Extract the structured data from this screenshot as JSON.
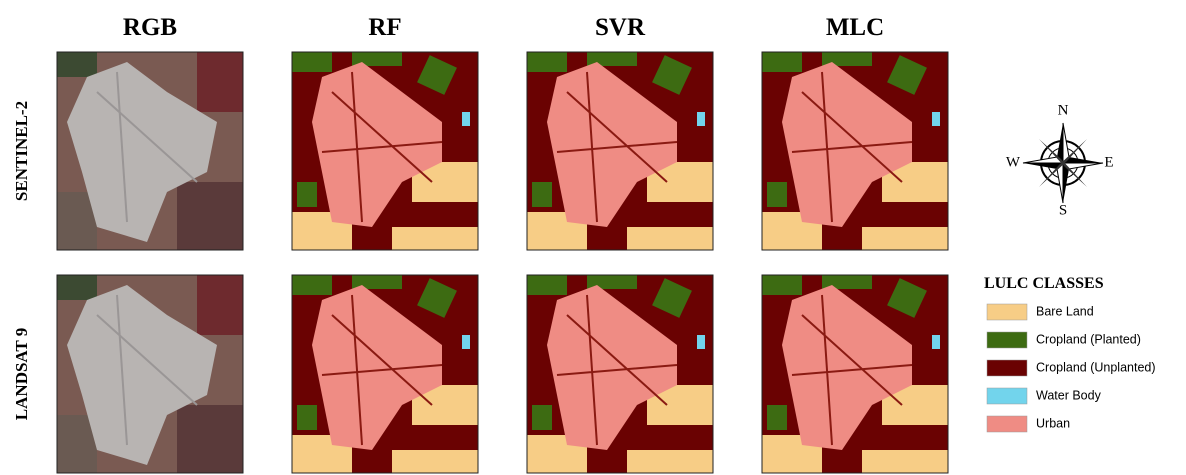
{
  "columns": [
    "RGB",
    "RF",
    "SVR",
    "MLC"
  ],
  "rows": [
    "SENTINEL-2",
    "LANDSAT 9"
  ],
  "compass": {
    "n": "N",
    "s": "S",
    "e": "E",
    "w": "W"
  },
  "legend": {
    "title": "LULC CLASSES",
    "items": [
      {
        "label": "Bare Land",
        "color": "#f7cd86"
      },
      {
        "label": "Cropland (Planted)",
        "color": "#3d6b12"
      },
      {
        "label": "Cropland (Unplanted)",
        "color": "#6a0202"
      },
      {
        "label": "Water Body",
        "color": "#72d4ec"
      },
      {
        "label": "Urban",
        "color": "#ef8c84"
      }
    ]
  }
}
